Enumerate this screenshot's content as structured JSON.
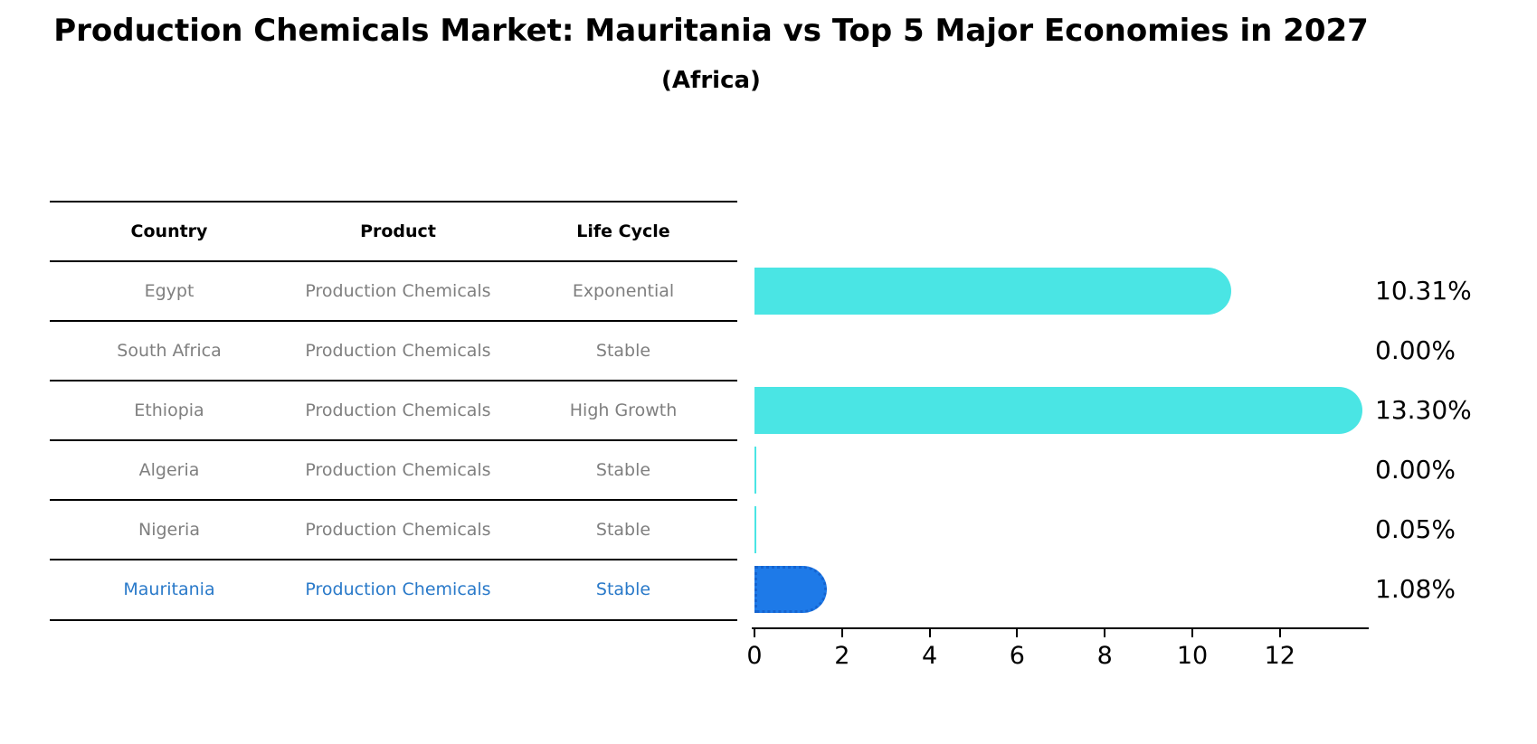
{
  "title": "Production Chemicals Market: Mauritania vs Top 5 Major Economies in 2027",
  "subtitle": "(Africa)",
  "colors": {
    "bar_default": "#4AE5E4",
    "bar_highlight": "#1E7AE8",
    "highlight_text": "#2979C9",
    "row_text": "#7f7f7f",
    "header_text": "#000000",
    "axis_text": "#000000"
  },
  "table": {
    "headers": [
      "Country",
      "Product",
      "Life Cycle"
    ]
  },
  "chart_data": {
    "type": "bar",
    "orientation": "horizontal",
    "title": "Production Chemicals Market: Mauritania vs Top 5 Major Economies in 2027 (Africa)",
    "xlabel": "",
    "ylabel": "",
    "xlim": [
      0,
      14
    ],
    "x_ticks": [
      "0",
      "2",
      "4",
      "6",
      "8",
      "10",
      "12"
    ],
    "x_tick_values": [
      0,
      2,
      4,
      6,
      8,
      10,
      12
    ],
    "grid": false,
    "legend": false,
    "rows": [
      {
        "country": "Egypt",
        "product": "Production Chemicals",
        "life_cycle": "Exponential",
        "value": 10.31,
        "value_label": "10.31%",
        "highlight": false
      },
      {
        "country": "South Africa",
        "product": "Production Chemicals",
        "life_cycle": "Stable",
        "value": 0.0,
        "value_label": "0.00%",
        "highlight": false
      },
      {
        "country": "Ethiopia",
        "product": "Production Chemicals",
        "life_cycle": "High Growth",
        "value": 13.3,
        "value_label": "13.30%",
        "highlight": false
      },
      {
        "country": "Algeria",
        "product": "Production Chemicals",
        "life_cycle": "Stable",
        "value": 0.004,
        "value_label": "0.00%",
        "highlight": false
      },
      {
        "country": "Nigeria",
        "product": "Production Chemicals",
        "life_cycle": "Stable",
        "value": 0.05,
        "value_label": "0.05%",
        "highlight": false
      },
      {
        "country": "Mauritania",
        "product": "Production Chemicals",
        "life_cycle": "Stable",
        "value": 1.08,
        "value_label": "1.08%",
        "highlight": true
      }
    ]
  }
}
